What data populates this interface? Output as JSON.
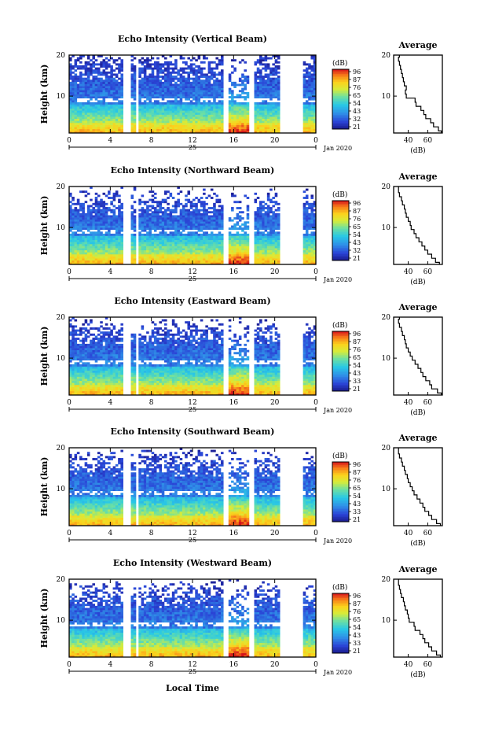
{
  "bottom_xlabel": "Local Time",
  "chart_data": [
    {
      "type": "heatmap",
      "title": "Echo Intensity (Vertical Beam)",
      "ylabel": "Height (km)",
      "x_ticks": [
        "0",
        "4",
        "8",
        "12",
        "16",
        "20",
        "0"
      ],
      "y_ticks": [
        "20",
        "10"
      ],
      "xlim": [
        0,
        24
      ],
      "ylim": [
        1,
        20
      ],
      "date_day": "25",
      "date_label": "Jan 2020",
      "colorbar": {
        "label": "(dB)",
        "ticks": [
          "96",
          "87",
          "76",
          "65",
          "54",
          "43",
          "32",
          "21"
        ]
      },
      "data_gaps_hours": [
        [
          5.2,
          5.9
        ],
        [
          6.5,
          6.8
        ],
        [
          14.9,
          15.6
        ],
        [
          17.6,
          18.0
        ],
        [
          20.5,
          22.7
        ]
      ],
      "profile": {
        "title": "Average",
        "xlabel": "(dB)",
        "x_ticks": [
          "40",
          "60"
        ],
        "xlim": [
          25,
          75
        ],
        "heights_km": [
          1,
          2,
          3,
          4,
          5,
          6,
          7,
          8,
          9,
          10,
          11,
          12,
          13,
          14,
          15,
          16,
          17,
          18,
          19,
          20
        ],
        "values_db": [
          74,
          71,
          66,
          63,
          58,
          56,
          53,
          48,
          47,
          38,
          37,
          38,
          36,
          35,
          34,
          33,
          32,
          31,
          30,
          31
        ]
      }
    },
    {
      "type": "heatmap",
      "title": "Echo Intensity (Northward Beam)",
      "ylabel": "Height (km)",
      "x_ticks": [
        "0",
        "4",
        "8",
        "12",
        "16",
        "20",
        "0"
      ],
      "y_ticks": [
        "20",
        "10"
      ],
      "xlim": [
        0,
        24
      ],
      "ylim": [
        1,
        20
      ],
      "date_day": "25",
      "date_label": "Jan 2020",
      "colorbar": {
        "label": "(dB)",
        "ticks": [
          "96",
          "87",
          "76",
          "65",
          "54",
          "43",
          "32",
          "21"
        ]
      },
      "data_gaps_hours": [
        [
          5.2,
          5.9
        ],
        [
          6.5,
          6.8
        ],
        [
          14.9,
          15.6
        ],
        [
          17.6,
          18.0
        ],
        [
          20.5,
          22.7
        ]
      ],
      "profile": {
        "title": "Average",
        "xlabel": "(dB)",
        "x_ticks": [
          "40",
          "60"
        ],
        "xlim": [
          25,
          75
        ],
        "heights_km": [
          1,
          2,
          3,
          4,
          5,
          6,
          7,
          8,
          9,
          10,
          11,
          12,
          13,
          14,
          15,
          16,
          17,
          18,
          19,
          20
        ],
        "values_db": [
          72,
          68,
          64,
          60,
          57,
          54,
          51,
          48,
          46,
          43,
          42,
          40,
          38,
          37,
          36,
          34,
          33,
          31,
          30,
          30
        ]
      }
    },
    {
      "type": "heatmap",
      "title": "Echo Intensity (Eastward Beam)",
      "ylabel": "Height (km)",
      "x_ticks": [
        "0",
        "4",
        "8",
        "12",
        "16",
        "20",
        "0"
      ],
      "y_ticks": [
        "20",
        "10"
      ],
      "xlim": [
        0,
        24
      ],
      "ylim": [
        1,
        20
      ],
      "date_day": "25",
      "date_label": "Jan 2020",
      "colorbar": {
        "label": "(dB)",
        "ticks": [
          "96",
          "87",
          "76",
          "65",
          "54",
          "43",
          "33",
          "21"
        ]
      },
      "data_gaps_hours": [
        [
          5.2,
          5.9
        ],
        [
          6.5,
          6.8
        ],
        [
          14.9,
          15.6
        ],
        [
          17.6,
          18.0
        ],
        [
          20.5,
          22.7
        ]
      ],
      "profile": {
        "title": "Average",
        "xlabel": "(dB)",
        "x_ticks": [
          "40",
          "60"
        ],
        "xlim": [
          25,
          75
        ],
        "heights_km": [
          1,
          2,
          3,
          4,
          5,
          6,
          7,
          8,
          9,
          10,
          11,
          12,
          13,
          14,
          15,
          16,
          17,
          18,
          19,
          20
        ],
        "values_db": [
          74,
          70,
          64,
          62,
          58,
          55,
          53,
          50,
          47,
          44,
          42,
          40,
          38,
          37,
          36,
          34,
          33,
          31,
          30,
          31
        ]
      }
    },
    {
      "type": "heatmap",
      "title": "Echo Intensity (Southward Beam)",
      "ylabel": "Height (km)",
      "x_ticks": [
        "0",
        "4",
        "8",
        "12",
        "16",
        "20",
        "0"
      ],
      "y_ticks": [
        "20",
        "10"
      ],
      "xlim": [
        0,
        24
      ],
      "ylim": [
        1,
        20
      ],
      "date_day": "25",
      "date_label": "Jan 2020",
      "colorbar": {
        "label": "(dB)",
        "ticks": [
          "96",
          "87",
          "76",
          "65",
          "54",
          "43",
          "33",
          "21"
        ]
      },
      "data_gaps_hours": [
        [
          5.2,
          5.9
        ],
        [
          6.5,
          6.8
        ],
        [
          14.9,
          15.6
        ],
        [
          17.6,
          18.0
        ],
        [
          20.5,
          22.7
        ]
      ],
      "profile": {
        "title": "Average",
        "xlabel": "(dB)",
        "x_ticks": [
          "40",
          "60"
        ],
        "xlim": [
          25,
          75
        ],
        "heights_km": [
          1,
          2,
          3,
          4,
          5,
          6,
          7,
          8,
          9,
          10,
          11,
          12,
          13,
          14,
          15,
          16,
          17,
          18,
          19,
          20
        ],
        "values_db": [
          73,
          69,
          64,
          61,
          57,
          55,
          52,
          49,
          46,
          44,
          42,
          40,
          39,
          37,
          36,
          34,
          33,
          31,
          30,
          30
        ]
      }
    },
    {
      "type": "heatmap",
      "title": "Echo Intensity (Westward Beam)",
      "ylabel": "Height (km)",
      "x_ticks": [
        "0",
        "4",
        "8",
        "12",
        "16",
        "20",
        "0"
      ],
      "y_ticks": [
        "20",
        "10"
      ],
      "xlim": [
        0,
        24
      ],
      "ylim": [
        1,
        20
      ],
      "date_day": "25",
      "date_label": "Jan 2020",
      "colorbar": {
        "label": "(dB)",
        "ticks": [
          "96",
          "87",
          "76",
          "65",
          "54",
          "43",
          "33",
          "21"
        ]
      },
      "data_gaps_hours": [
        [
          5.2,
          5.9
        ],
        [
          6.5,
          6.8
        ],
        [
          14.9,
          15.6
        ],
        [
          17.6,
          18.0
        ],
        [
          20.5,
          22.7
        ]
      ],
      "profile": {
        "title": "Average",
        "xlabel": "(dB)",
        "x_ticks": [
          "40",
          "60"
        ],
        "xlim": [
          25,
          75
        ],
        "heights_km": [
          1,
          2,
          3,
          4,
          5,
          6,
          7,
          8,
          9,
          10,
          11,
          12,
          13,
          14,
          15,
          16,
          17,
          18,
          19,
          20
        ],
        "values_db": [
          73,
          69,
          64,
          61,
          57,
          55,
          52,
          47,
          46,
          41,
          40,
          39,
          37,
          36,
          35,
          33,
          32,
          31,
          30,
          30
        ]
      }
    }
  ]
}
